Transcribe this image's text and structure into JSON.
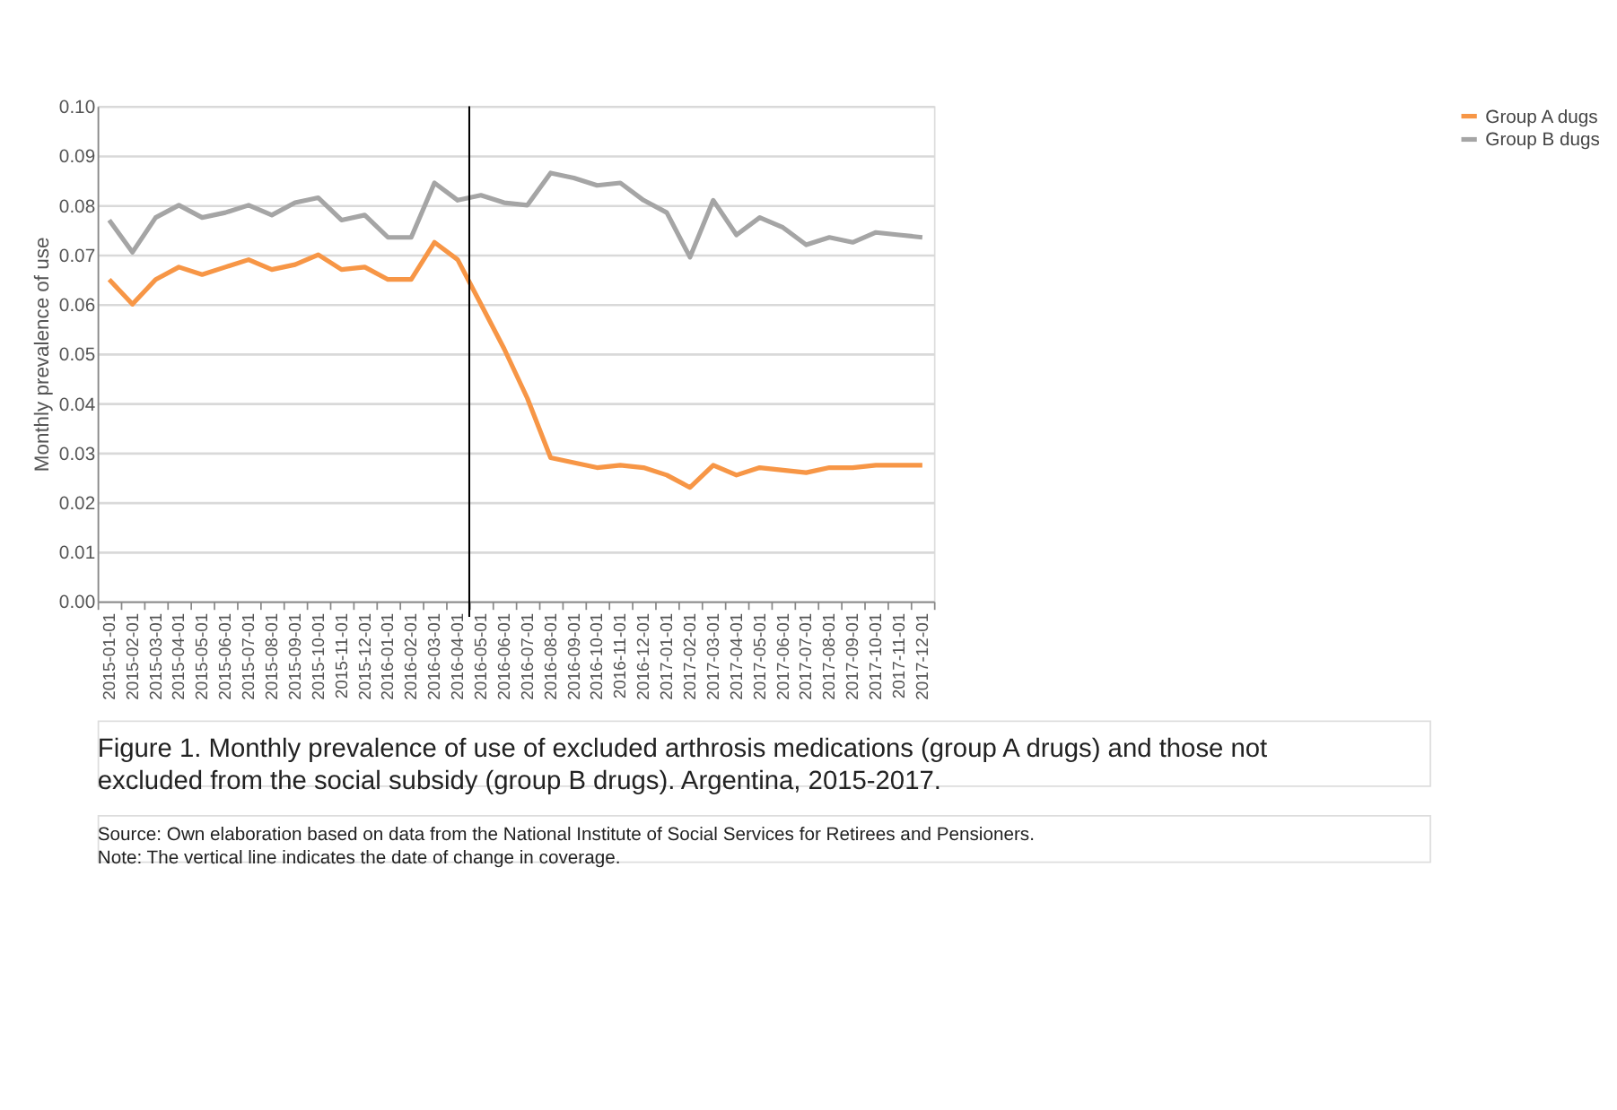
{
  "chart_data": {
    "type": "line",
    "title": "Figure 1. Monthly prevalence of use of excluded arthrosis medications (group A drugs) and those not excluded from the social subsidy (group B drugs). Argentina, 2015-2017.",
    "ylabel": "Monthly prevalence of use",
    "categories": [
      "2015-01-01",
      "2015-02-01",
      "2015-03-01",
      "2015-04-01",
      "2015-05-01",
      "2015-06-01",
      "2015-07-01",
      "2015-08-01",
      "2015-09-01",
      "2015-10-01",
      "2015-11-01",
      "2015-12-01",
      "2016-01-01",
      "2016-02-01",
      "2016-03-01",
      "2016-04-01",
      "2016-05-01",
      "2016-06-01",
      "2016-07-01",
      "2016-08-01",
      "2016-09-01",
      "2016-10-01",
      "2016-11-01",
      "2016-12-01",
      "2017-01-01",
      "2017-02-01",
      "2017-03-01",
      "2017-04-01",
      "2017-05-01",
      "2017-06-01",
      "2017-07-01",
      "2017-08-01",
      "2017-09-01",
      "2017-10-01",
      "2017-11-01",
      "2017-12-01"
    ],
    "series": [
      {
        "name": "Group A dugs",
        "color": "#f79646",
        "values": [
          0.065,
          0.06,
          0.065,
          0.0675,
          0.066,
          0.0675,
          0.069,
          0.067,
          0.068,
          0.07,
          0.067,
          0.0675,
          0.065,
          0.065,
          0.0725,
          0.069,
          0.06,
          0.051,
          0.041,
          0.029,
          0.028,
          0.027,
          0.0275,
          0.027,
          0.0255,
          0.023,
          0.0275,
          0.0255,
          0.027,
          0.0265,
          0.026,
          0.027,
          0.027,
          0.0275,
          0.0275,
          0.0275
        ]
      },
      {
        "name": "Group B dugs",
        "color": "#a5a5a5",
        "values": [
          0.077,
          0.0705,
          0.0775,
          0.08,
          0.0775,
          0.0785,
          0.08,
          0.078,
          0.0805,
          0.0815,
          0.077,
          0.078,
          0.0735,
          0.0735,
          0.0845,
          0.081,
          0.082,
          0.0805,
          0.08,
          0.0865,
          0.0855,
          0.084,
          0.0845,
          0.081,
          0.0785,
          0.0695,
          0.081,
          0.074,
          0.0775,
          0.0755,
          0.072,
          0.0735,
          0.0725,
          0.0745,
          0.074,
          0.0735
        ]
      }
    ],
    "ylim": [
      0,
      0.1
    ],
    "yticks": [
      {
        "value": 0,
        "label": "0.00"
      },
      {
        "value": 0.01,
        "label": "0.01"
      },
      {
        "value": 0.02,
        "label": "0.02"
      },
      {
        "value": 0.03,
        "label": "0.03"
      },
      {
        "value": 0.04,
        "label": "0.04"
      },
      {
        "value": 0.05,
        "label": "0.05"
      },
      {
        "value": 0.06,
        "label": "0.06"
      },
      {
        "value": 0.07,
        "label": "0.07"
      },
      {
        "value": 0.08,
        "label": "0.08"
      },
      {
        "value": 0.09,
        "label": "0.09"
      },
      {
        "value": 0.1,
        "label": "0.10"
      }
    ],
    "grid": "y",
    "legend": "right",
    "marker": "none",
    "line_style": "solid",
    "ref_lines": [
      {
        "axis": "x",
        "value": "2016-05-01",
        "color": "#000000"
      }
    ],
    "annotations": [
      "Source: Own elaboration based on data from the National Institute of Social Services for Retirees and Pensioners.",
      "Note: The vertical line indicates the date of change in coverage."
    ]
  }
}
